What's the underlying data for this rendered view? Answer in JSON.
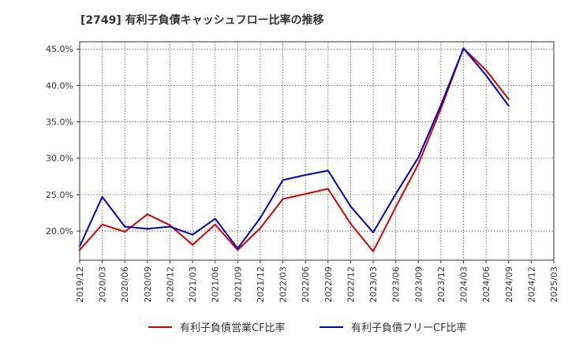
{
  "chart_data": {
    "type": "line",
    "title": "[2749]  有利子負債キャッシュフロー比率の推移",
    "xlabel": "",
    "ylabel": "",
    "x_ticks": [
      "2019/12",
      "2020/03",
      "2020/06",
      "2020/09",
      "2020/12",
      "2021/03",
      "2021/06",
      "2021/09",
      "2021/12",
      "2022/03",
      "2022/06",
      "2022/09",
      "2022/12",
      "2023/03",
      "2023/06",
      "2023/09",
      "2023/12",
      "2024/03",
      "2024/06",
      "2024/09",
      "2024/12",
      "2025/03"
    ],
    "y_ticks": [
      "20.0%",
      "25.0%",
      "30.0%",
      "35.0%",
      "40.0%",
      "45.0%"
    ],
    "y_tick_values": [
      20,
      25,
      30,
      35,
      40,
      45
    ],
    "ylim": [
      16,
      46
    ],
    "grid": true,
    "legend_position": "bottom",
    "series": [
      {
        "name": "有利子負債営業CF比率",
        "color": "#dd0000",
        "x": [
          "2019/12",
          "2020/03",
          "2020/06",
          "2020/09",
          "2020/12",
          "2021/03",
          "2021/06",
          "2021/09",
          "2021/12",
          "2022/03",
          "2022/06",
          "2022/09",
          "2022/12",
          "2023/03",
          "2023/06",
          "2023/09",
          "2023/12",
          "2024/03",
          "2024/06",
          "2024/09"
        ],
        "values": [
          17.4,
          20.9,
          19.9,
          22.3,
          20.8,
          18.1,
          20.9,
          17.4,
          20.4,
          24.4,
          25.1,
          25.8,
          21.0,
          17.2,
          23.3,
          29.2,
          36.8,
          45.1,
          42.1,
          38.1
        ]
      },
      {
        "name": "有利子負債フリーCF比率",
        "color": "#0000cc",
        "x": [
          "2019/12",
          "2020/03",
          "2020/06",
          "2020/09",
          "2020/12",
          "2021/03",
          "2021/06",
          "2021/09",
          "2021/12",
          "2022/03",
          "2022/06",
          "2022/09",
          "2022/12",
          "2023/03",
          "2023/06",
          "2023/09",
          "2023/12",
          "2024/03",
          "2024/06",
          "2024/09"
        ],
        "values": [
          17.9,
          24.7,
          20.6,
          20.3,
          20.6,
          19.5,
          21.7,
          17.6,
          21.8,
          27.0,
          27.7,
          28.3,
          23.4,
          19.8,
          25.1,
          30.1,
          37.3,
          45.1,
          41.4,
          37.2
        ]
      }
    ]
  }
}
